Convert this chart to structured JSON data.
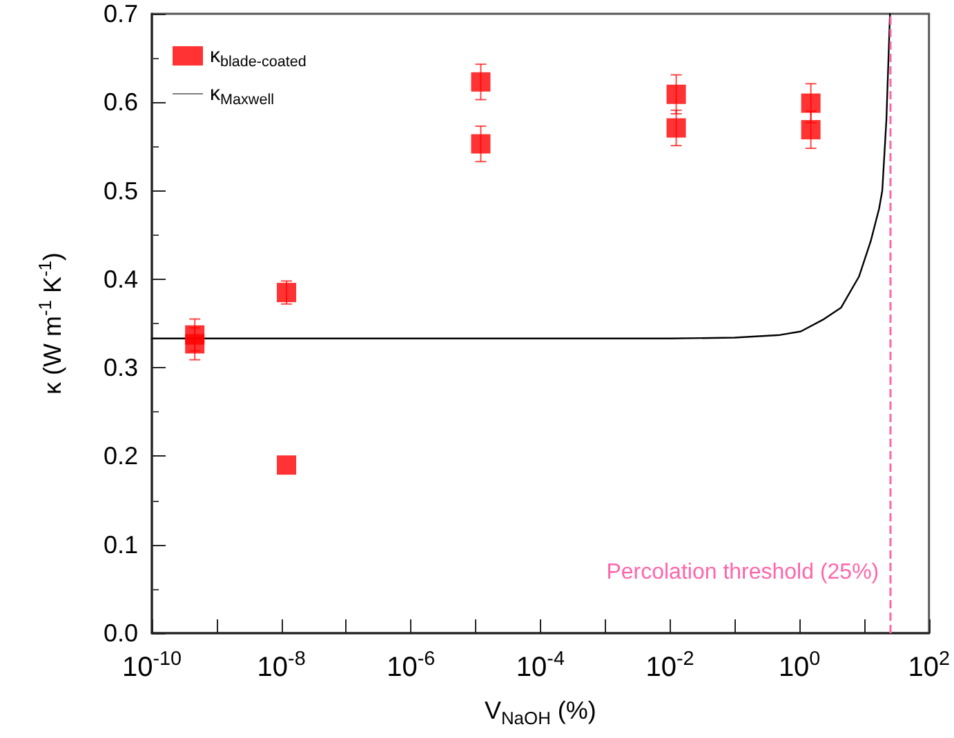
{
  "chart_data": {
    "type": "scatter",
    "xlabel": "V$_{NaOH}$ (%)",
    "ylabel": "κ (W m$^{-1}$ K$^{-1}$)",
    "log": "x",
    "xlim": [
      1e-10,
      100
    ],
    "ylim": [
      0,
      0.7
    ],
    "xticks": [
      {
        "value": 1e-10,
        "label": "10$^{-10}$"
      },
      {
        "value": 1e-09,
        "label": null
      },
      {
        "value": 1e-08,
        "label": "10$^{-8}$"
      },
      {
        "value": 1e-07,
        "label": null
      },
      {
        "value": 1e-06,
        "label": "10$^{-6}$"
      },
      {
        "value": 1e-05,
        "label": null
      },
      {
        "value": 0.0001,
        "label": "10$^{-4}$"
      },
      {
        "value": 0.001,
        "label": null
      },
      {
        "value": 0.01,
        "label": "10$^{-2}$"
      },
      {
        "value": 0.1,
        "label": null
      },
      {
        "value": 1,
        "label": "10$^{0}$"
      },
      {
        "value": 10,
        "label": null
      },
      {
        "value": 100,
        "label": "10$^{2}$"
      }
    ],
    "yticks": [
      {
        "value": 0,
        "label": "0.0"
      },
      0.1,
      0.2,
      0.3,
      0.4,
      0.5,
      0.6,
      0.7
    ],
    "legend": "top left",
    "grid": false,
    "series": [
      {
        "name": "κ$_{blade-coated}$",
        "marker": "square",
        "color": "#ff0000",
        "x": [
          4.6e-10,
          4.6e-10,
          1.2e-08,
          1.2e-08,
          1.2e-05,
          1.2e-05,
          0.0125,
          0.0125,
          1.5,
          1.5
        ],
        "values": [
          0.337,
          0.327,
          0.385,
          0.19,
          0.623,
          0.553,
          0.609,
          0.571,
          0.599,
          0.569
        ],
        "errors": [
          0.018,
          0.018,
          0.013,
          null,
          0.02,
          0.02,
          0.022,
          0.02,
          0.022,
          0.021
        ]
      },
      {
        "name": "κ$_{Maxwell}$",
        "type": "line",
        "marker": "none",
        "line_style": "solid",
        "color": "#000000",
        "x": [
          1e-10,
          1e-06,
          0.01,
          0.1,
          0.5,
          1.05,
          2.4,
          4.4,
          8.3,
          12.6,
          17,
          19,
          22,
          25
        ],
        "values": [
          0.333,
          0.333,
          0.333,
          0.334,
          0.337,
          0.341,
          0.355,
          0.368,
          0.403,
          0.443,
          0.48,
          0.5,
          0.58,
          0.7
        ]
      }
    ],
    "ref_lines": [
      {
        "axis": "x",
        "value": 25,
        "label": "Percolation threshold (25%)",
        "color": "#ff66aa",
        "line_style": "dashed"
      }
    ]
  }
}
